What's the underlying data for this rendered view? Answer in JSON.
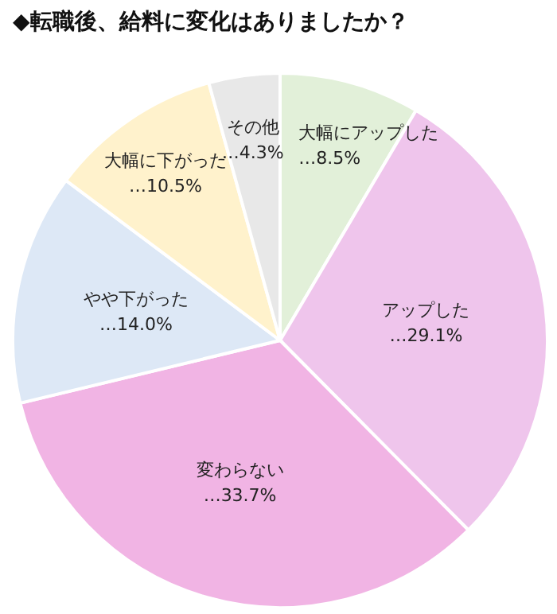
{
  "chart_data": {
    "type": "pie",
    "title": "◆転職後、給料に変化はありましたか？",
    "categories": [
      "大幅にアップした",
      "アップした",
      "変わらない",
      "やや下がった",
      "大幅に下がった",
      "その他"
    ],
    "values": [
      8.5,
      29.1,
      33.7,
      14.0,
      10.5,
      4.3
    ],
    "value_labels": [
      "…8.5%",
      "…29.1%",
      "…33.7%",
      "…14.0%",
      "…10.5%",
      "…4.3%"
    ],
    "colors": [
      "#e2f0d9",
      "#efc5ec",
      "#f1b4e4",
      "#dde8f6",
      "#fff2cc",
      "#e8e8e8"
    ]
  }
}
